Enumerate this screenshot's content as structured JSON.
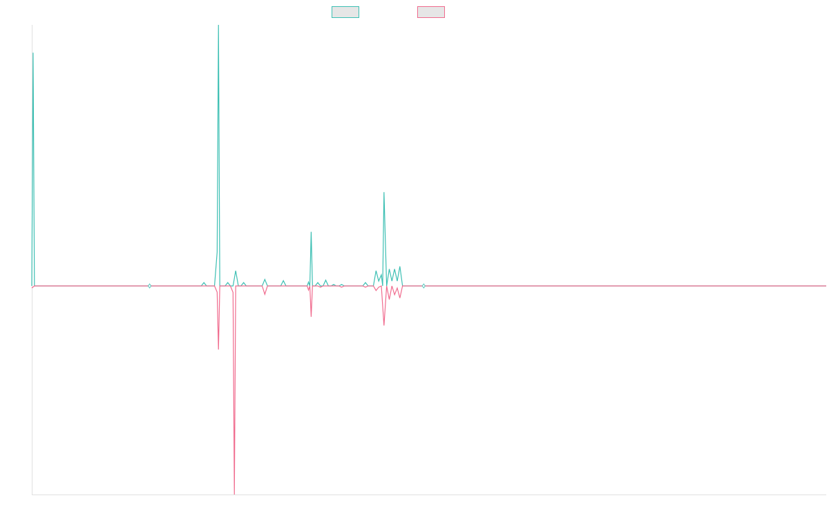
{
  "chart_data": {
    "type": "line",
    "title": "",
    "xlabel": "",
    "ylabel": "",
    "grid": false,
    "legend": {
      "placement": "top-center",
      "labels_visible": false
    },
    "x_range": [
      0,
      300
    ],
    "ylim": [
      -1.0,
      1.08
    ],
    "colors": {
      "series_a": "#3cbfb3",
      "series_b": "#f06a8d",
      "axis": "#e0e0e0"
    },
    "series": [
      {
        "color": "#3cbfb3",
        "points": [
          [
            0,
            0
          ],
          [
            0.5,
            0.965
          ],
          [
            1,
            0
          ],
          [
            44,
            0
          ],
          [
            44.5,
            0.006
          ],
          [
            45,
            0
          ],
          [
            64,
            0
          ],
          [
            65,
            0.014
          ],
          [
            66,
            0
          ],
          [
            69,
            0
          ],
          [
            70,
            0.14
          ],
          [
            70.5,
            1.08
          ],
          [
            71,
            0.0
          ],
          [
            73,
            0
          ],
          [
            74,
            0.014
          ],
          [
            75,
            0
          ],
          [
            76,
            0
          ],
          [
            77,
            0.063
          ],
          [
            78,
            0
          ],
          [
            79,
            0
          ],
          [
            80,
            0.014
          ],
          [
            81,
            0
          ],
          [
            87,
            0
          ],
          [
            88,
            0.027
          ],
          [
            89,
            0
          ],
          [
            94,
            0
          ],
          [
            95,
            0.022
          ],
          [
            96,
            0
          ],
          [
            104,
            0
          ],
          [
            104.5,
            0.016
          ],
          [
            105,
            0
          ],
          [
            105.5,
            0.224
          ],
          [
            106,
            0
          ],
          [
            107,
            0
          ],
          [
            108,
            0.014
          ],
          [
            109,
            0
          ],
          [
            110,
            0
          ],
          [
            111,
            0.024
          ],
          [
            112,
            0
          ],
          [
            113,
            0
          ],
          [
            114,
            0.006
          ],
          [
            115,
            0
          ],
          [
            116,
            0
          ],
          [
            117,
            0.006
          ],
          [
            118,
            0
          ],
          [
            125,
            0
          ],
          [
            126,
            0.014
          ],
          [
            127,
            0
          ],
          [
            129,
            0
          ],
          [
            130,
            0.063
          ],
          [
            131,
            0.02
          ],
          [
            132,
            0.046
          ],
          [
            132.5,
            0
          ],
          [
            133,
            0.388
          ],
          [
            134,
            0
          ],
          [
            135,
            0.07
          ],
          [
            136,
            0.02
          ],
          [
            137,
            0.07
          ],
          [
            138,
            0.02
          ],
          [
            139,
            0.081
          ],
          [
            140,
            0.0
          ],
          [
            300,
            0
          ]
        ]
      },
      {
        "color": "#f06a8d",
        "points": [
          [
            0,
            -0.01
          ],
          [
            1,
            0
          ],
          [
            44,
            0
          ],
          [
            44.5,
            -0.006
          ],
          [
            45,
            0
          ],
          [
            69,
            0
          ],
          [
            70,
            -0.03
          ],
          [
            70.5,
            -0.305
          ],
          [
            71,
            0
          ],
          [
            75,
            0
          ],
          [
            76,
            -0.031
          ],
          [
            76.5,
            -1.0
          ],
          [
            77,
            0
          ],
          [
            87,
            0
          ],
          [
            88,
            -0.04
          ],
          [
            89,
            0
          ],
          [
            104,
            0
          ],
          [
            104.5,
            -0.02
          ],
          [
            105,
            0
          ],
          [
            105.5,
            -0.148
          ],
          [
            106,
            0
          ],
          [
            108,
            0
          ],
          [
            109,
            -0.006
          ],
          [
            110,
            0
          ],
          [
            116,
            0
          ],
          [
            117,
            -0.006
          ],
          [
            118,
            0
          ],
          [
            125,
            0
          ],
          [
            126,
            -0.006
          ],
          [
            127,
            0
          ],
          [
            129,
            0
          ],
          [
            130,
            -0.022
          ],
          [
            131,
            -0.006
          ],
          [
            132,
            0
          ],
          [
            133,
            -0.19
          ],
          [
            134,
            0
          ],
          [
            135,
            -0.065
          ],
          [
            136,
            0
          ],
          [
            137,
            -0.042
          ],
          [
            138,
            -0.01
          ],
          [
            139,
            -0.058
          ],
          [
            140,
            0
          ],
          [
            300,
            0
          ]
        ]
      }
    ],
    "markers": [
      {
        "x": 44.5,
        "y": 0
      },
      {
        "x": 148,
        "y": 0
      }
    ]
  }
}
